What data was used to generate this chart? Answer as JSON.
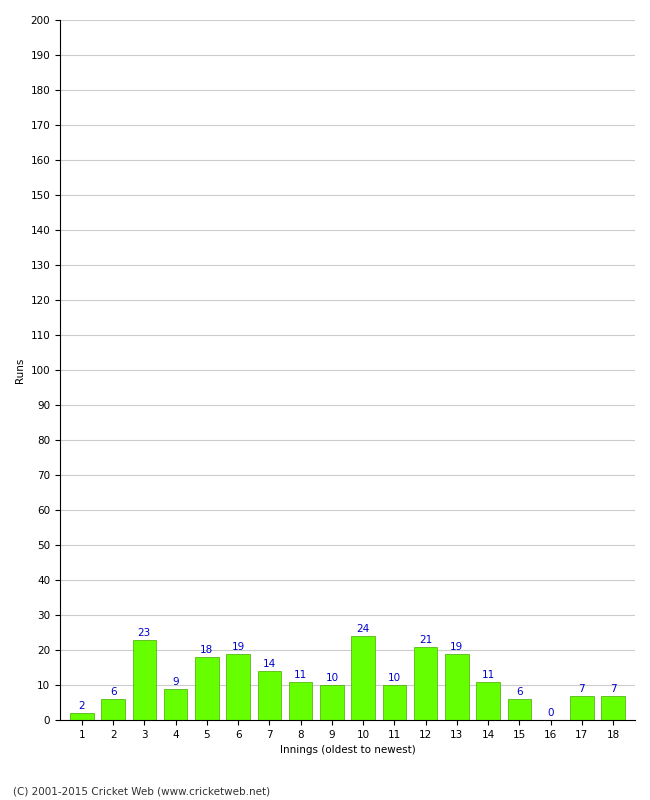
{
  "innings": [
    1,
    2,
    3,
    4,
    5,
    6,
    7,
    8,
    9,
    10,
    11,
    12,
    13,
    14,
    15,
    16,
    17,
    18
  ],
  "runs": [
    2,
    6,
    23,
    9,
    18,
    19,
    14,
    11,
    10,
    24,
    10,
    21,
    19,
    11,
    6,
    0,
    7,
    7
  ],
  "bar_color": "#66ff00",
  "bar_edge_color": "#44aa00",
  "label_color": "#0000cc",
  "xlabel": "Innings (oldest to newest)",
  "ylabel": "Runs",
  "ylim": [
    0,
    200
  ],
  "ytick_step": 10,
  "background_color": "#ffffff",
  "grid_color": "#cccccc",
  "footer_text": "(C) 2001-2015 Cricket Web (www.cricketweb.net)",
  "label_fontsize": 7.5,
  "axis_label_fontsize": 7.5,
  "tick_fontsize": 7.5,
  "footer_fontsize": 7.5
}
